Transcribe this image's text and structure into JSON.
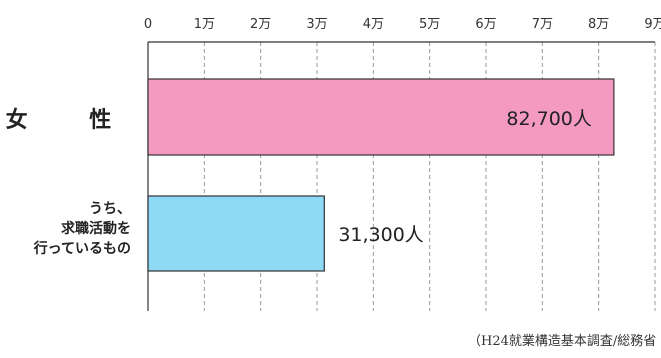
{
  "chart_data": {
    "type": "bar",
    "orientation": "horizontal",
    "categories": [
      "女　性",
      "うち、求職活動を行っているもの"
    ],
    "category_lines": [
      [
        "女　性"
      ],
      [
        "うち、",
        "求職活動を",
        "行っているもの"
      ]
    ],
    "values": [
      82700,
      31300
    ],
    "value_labels": [
      "82,700人",
      "31,300人"
    ],
    "xlim": [
      0,
      90000
    ],
    "ticks": [
      0,
      10000,
      20000,
      30000,
      40000,
      50000,
      60000,
      70000,
      80000,
      90000
    ],
    "tick_labels": [
      "0",
      "1万",
      "2万",
      "3万",
      "4万",
      "5万",
      "6万",
      "7万",
      "8万",
      "9万"
    ],
    "grid": true,
    "colors": {
      "bars": [
        "#f49ac1",
        "#8ed9f6"
      ],
      "edge": "#333333",
      "grid": "#9a9a9a"
    }
  },
  "source": "（H24就業構造基本調査/総務省"
}
